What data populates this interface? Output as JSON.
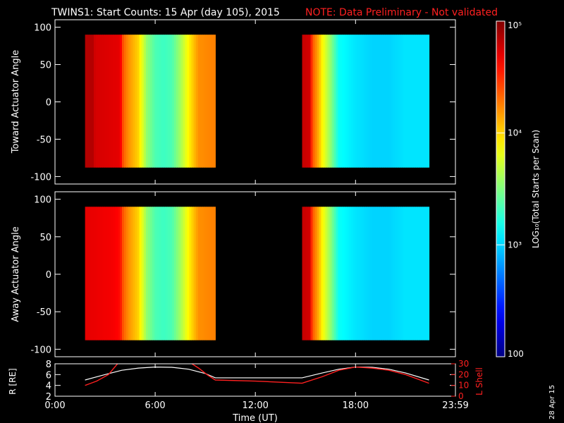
{
  "header": {
    "title": "TWINS1: Start Counts: 15 Apr (day 105), 2015",
    "note": "NOTE: Data Preliminary - Not validated"
  },
  "footer": {
    "date_stamp": "28 Apr 15"
  },
  "colors": {
    "background": "#000000",
    "axes": "#ffffff",
    "note": "#ff2020",
    "radius_line": "#ffffff",
    "lshell_line": "#ff2020"
  },
  "chart_data": [
    {
      "type": "heatmap",
      "id": "toward",
      "ylabel": "Toward Actuator Angle",
      "ylim": [
        -110,
        110
      ],
      "yticks": [
        "100",
        "50",
        "0",
        "-50",
        "-100"
      ],
      "ytick_values": [
        100,
        50,
        0,
        -50,
        -100
      ],
      "xlim_hours": [
        0,
        23.983
      ],
      "data_angle_range": [
        -88,
        90
      ],
      "segments": [
        {
          "start_hour": 1.8,
          "end_hour": 9.6,
          "profile": [
            [
              1.8,
              4.85
            ],
            [
              2.3,
              4.85
            ],
            [
              2.4,
              4.75
            ],
            [
              3.9,
              4.7
            ],
            [
              4.1,
              4.35
            ],
            [
              4.4,
              4.2
            ],
            [
              5.0,
              4.0
            ],
            [
              5.5,
              3.55
            ],
            [
              6.0,
              3.35
            ],
            [
              6.5,
              3.3
            ],
            [
              7.0,
              3.35
            ],
            [
              7.5,
              3.6
            ],
            [
              8.0,
              3.9
            ],
            [
              8.6,
              4.2
            ],
            [
              9.6,
              4.25
            ]
          ]
        },
        {
          "start_hour": 14.8,
          "end_hour": 22.4,
          "profile": [
            [
              14.8,
              4.8
            ],
            [
              15.3,
              4.75
            ],
            [
              15.4,
              4.4
            ],
            [
              15.8,
              4.1
            ],
            [
              16.0,
              3.9
            ],
            [
              16.5,
              3.55
            ],
            [
              17.0,
              3.15
            ],
            [
              18.0,
              3.05
            ],
            [
              19.0,
              3.0
            ],
            [
              20.0,
              3.0
            ],
            [
              21.0,
              3.05
            ],
            [
              22.4,
              3.05
            ]
          ]
        }
      ]
    },
    {
      "type": "heatmap",
      "id": "away",
      "ylabel": "Away Actuator Angle",
      "ylim": [
        -110,
        110
      ],
      "yticks": [
        "100",
        "50",
        "0",
        "-50",
        "-100"
      ],
      "ytick_values": [
        100,
        50,
        0,
        -50,
        -100
      ],
      "xlim_hours": [
        0,
        23.983
      ],
      "data_angle_range": [
        -88,
        90
      ],
      "segments": [
        {
          "start_hour": 1.8,
          "end_hour": 9.6,
          "profile": [
            [
              1.8,
              4.7
            ],
            [
              3.5,
              4.65
            ],
            [
              3.9,
              4.6
            ],
            [
              4.1,
              4.35
            ],
            [
              4.4,
              4.2
            ],
            [
              5.0,
              4.0
            ],
            [
              5.5,
              3.55
            ],
            [
              6.0,
              3.35
            ],
            [
              6.5,
              3.3
            ],
            [
              7.0,
              3.35
            ],
            [
              7.5,
              3.6
            ],
            [
              8.0,
              3.9
            ],
            [
              8.6,
              4.2
            ],
            [
              9.6,
              4.25
            ]
          ]
        },
        {
          "start_hour": 14.8,
          "end_hour": 22.4,
          "profile": [
            [
              14.8,
              4.8
            ],
            [
              15.3,
              4.75
            ],
            [
              15.4,
              4.4
            ],
            [
              15.8,
              4.1
            ],
            [
              16.0,
              3.9
            ],
            [
              16.5,
              3.55
            ],
            [
              17.0,
              3.15
            ],
            [
              18.0,
              3.05
            ],
            [
              19.0,
              3.0
            ],
            [
              20.0,
              3.0
            ],
            [
              21.0,
              3.05
            ],
            [
              22.4,
              3.05
            ]
          ]
        }
      ]
    },
    {
      "type": "line",
      "id": "ephemeris",
      "ylabel": "R [RE]",
      "ylabel_right": "L Shell",
      "ylim": [
        2,
        8
      ],
      "yticks": [
        "8",
        "6",
        "4",
        "2"
      ],
      "ytick_values": [
        8,
        6,
        4,
        2
      ],
      "ylim_right": [
        0,
        30
      ],
      "yticks_right": [
        "30",
        "20",
        "10",
        "0"
      ],
      "ytick_values_right": [
        30,
        20,
        10,
        0
      ],
      "xlabel": "Time (UT)",
      "xticks": [
        "0:00",
        "6:00",
        "12:00",
        "18:00",
        "23:59"
      ],
      "xtick_hours": [
        0,
        6,
        12,
        18,
        23.983
      ],
      "xlim_hours": [
        0,
        23.983
      ],
      "series": [
        {
          "axis": "left",
          "color": "#ffffff",
          "x": [
            1.8,
            3,
            4,
            5,
            6,
            7,
            8,
            9,
            9.6,
            12,
            14.8,
            16,
            17,
            18,
            19,
            20,
            21,
            22.4
          ],
          "y": [
            5.0,
            6.0,
            6.8,
            7.2,
            7.4,
            7.35,
            7.0,
            6.2,
            5.4,
            5.4,
            5.4,
            6.3,
            7.0,
            7.4,
            7.35,
            7.0,
            6.3,
            5.0
          ]
        },
        {
          "axis": "right",
          "color": "#ff2020",
          "segments": [
            {
              "x": [
                1.8,
                2.5,
                3.2,
                3.8
              ],
              "y": [
                10,
                14,
                20,
                31
              ]
            },
            {
              "x": [
                8.1,
                8.6,
                9.1,
                9.6,
                12,
                14.8,
                16,
                17,
                18,
                19,
                20,
                21,
                22.4
              ],
              "y": [
                31,
                26,
                20,
                15,
                14,
                12,
                18,
                24,
                27,
                26,
                24,
                20,
                12
              ]
            }
          ]
        }
      ]
    },
    {
      "type": "colorbar",
      "id": "colorbar",
      "label": "LOG₁₀(Total Starts per Scan)",
      "range_log10": [
        2,
        5
      ],
      "ticks": [
        "10⁵",
        "10⁴",
        "10³",
        "100"
      ],
      "tick_log10": [
        5,
        4,
        3,
        2
      ]
    }
  ]
}
